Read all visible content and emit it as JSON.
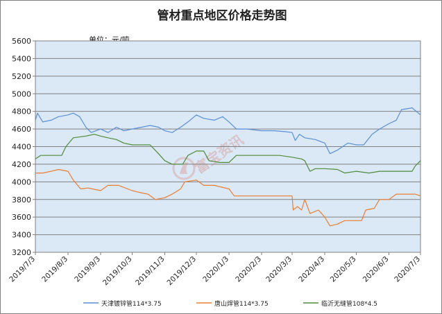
{
  "chart_data": {
    "type": "line",
    "title": "管材重点地区价格走势图",
    "unit_label": "单位：元/吨",
    "watermark": "富宝资讯",
    "ylim": [
      3200,
      5600
    ],
    "y_ticks": [
      3200,
      3400,
      3600,
      3800,
      4000,
      4200,
      4400,
      4600,
      4800,
      5000,
      5200,
      5400,
      5600
    ],
    "x_ticks": [
      "2019/7/3",
      "2019/8/3",
      "2019/9/3",
      "2019/10/3",
      "2019/11/3",
      "2019/12/3",
      "2020/1/3",
      "2020/2/3",
      "2020/3/3",
      "2020/4/3",
      "2020/5/3",
      "2020/6/3",
      "2020/7/3"
    ],
    "grid": true,
    "legend_position": "bottom",
    "series": [
      {
        "name": "天津镀锌管114*3.75",
        "color": "#5b8fd6",
        "points": [
          [
            "2019/7/3",
            4700
          ],
          [
            "2019/7/5",
            4780
          ],
          [
            "2019/7/10",
            4680
          ],
          [
            "2019/7/18",
            4700
          ],
          [
            "2019/7/25",
            4740
          ],
          [
            "2019/8/3",
            4760
          ],
          [
            "2019/8/8",
            4780
          ],
          [
            "2019/8/14",
            4740
          ],
          [
            "2019/8/20",
            4620
          ],
          [
            "2019/8/25",
            4560
          ],
          [
            "2019/9/3",
            4600
          ],
          [
            "2019/9/10",
            4560
          ],
          [
            "2019/9/18",
            4620
          ],
          [
            "2019/9/25",
            4580
          ],
          [
            "2019/10/3",
            4600
          ],
          [
            "2019/10/12",
            4620
          ],
          [
            "2019/10/20",
            4640
          ],
          [
            "2019/10/28",
            4620
          ],
          [
            "2019/11/3",
            4580
          ],
          [
            "2019/11/10",
            4560
          ],
          [
            "2019/11/18",
            4620
          ],
          [
            "2019/11/25",
            4680
          ],
          [
            "2019/12/3",
            4760
          ],
          [
            "2019/12/10",
            4720
          ],
          [
            "2019/12/20",
            4700
          ],
          [
            "2019/12/28",
            4740
          ],
          [
            "2020/1/3",
            4680
          ],
          [
            "2020/1/10",
            4600
          ],
          [
            "2020/1/20",
            4600
          ],
          [
            "2020/2/3",
            4580
          ],
          [
            "2020/2/15",
            4580
          ],
          [
            "2020/2/25",
            4570
          ],
          [
            "2020/3/3",
            4560
          ],
          [
            "2020/3/6",
            4470
          ],
          [
            "2020/3/10",
            4540
          ],
          [
            "2020/3/15",
            4500
          ],
          [
            "2020/3/25",
            4480
          ],
          [
            "2020/4/3",
            4440
          ],
          [
            "2020/4/8",
            4320
          ],
          [
            "2020/4/15",
            4360
          ],
          [
            "2020/4/25",
            4440
          ],
          [
            "2020/5/3",
            4420
          ],
          [
            "2020/5/10",
            4420
          ],
          [
            "2020/5/18",
            4540
          ],
          [
            "2020/5/25",
            4600
          ],
          [
            "2020/6/3",
            4660
          ],
          [
            "2020/6/10",
            4700
          ],
          [
            "2020/6/15",
            4820
          ],
          [
            "2020/6/25",
            4840
          ],
          [
            "2020/7/3",
            4760
          ]
        ]
      },
      {
        "name": "唐山焊管114*3.75",
        "color": "#ed7d31",
        "points": [
          [
            "2019/7/3",
            4100
          ],
          [
            "2019/7/10",
            4100
          ],
          [
            "2019/7/18",
            4120
          ],
          [
            "2019/7/25",
            4140
          ],
          [
            "2019/8/3",
            4120
          ],
          [
            "2019/8/8",
            4020
          ],
          [
            "2019/8/15",
            3920
          ],
          [
            "2019/8/22",
            3930
          ],
          [
            "2019/9/3",
            3900
          ],
          [
            "2019/9/10",
            3960
          ],
          [
            "2019/9/20",
            3960
          ],
          [
            "2019/10/3",
            3900
          ],
          [
            "2019/10/10",
            3880
          ],
          [
            "2019/10/18",
            3860
          ],
          [
            "2019/10/25",
            3800
          ],
          [
            "2019/11/3",
            3820
          ],
          [
            "2019/11/10",
            3860
          ],
          [
            "2019/11/18",
            3920
          ],
          [
            "2019/11/22",
            4000
          ],
          [
            "2019/12/3",
            4020
          ],
          [
            "2019/12/10",
            3960
          ],
          [
            "2019/12/20",
            3960
          ],
          [
            "2020/1/3",
            3920
          ],
          [
            "2020/1/8",
            3840
          ],
          [
            "2020/1/20",
            3840
          ],
          [
            "2020/2/3",
            3840
          ],
          [
            "2020/2/20",
            3840
          ],
          [
            "2020/3/3",
            3840
          ],
          [
            "2020/3/4",
            3680
          ],
          [
            "2020/3/8",
            3720
          ],
          [
            "2020/3/12",
            3680
          ],
          [
            "2020/3/15",
            3800
          ],
          [
            "2020/3/20",
            3640
          ],
          [
            "2020/3/28",
            3680
          ],
          [
            "2020/4/3",
            3600
          ],
          [
            "2020/4/8",
            3500
          ],
          [
            "2020/4/15",
            3520
          ],
          [
            "2020/4/22",
            3560
          ],
          [
            "2020/5/3",
            3560
          ],
          [
            "2020/5/8",
            3560
          ],
          [
            "2020/5/12",
            3680
          ],
          [
            "2020/5/20",
            3700
          ],
          [
            "2020/5/25",
            3800
          ],
          [
            "2020/6/3",
            3800
          ],
          [
            "2020/6/10",
            3860
          ],
          [
            "2020/6/20",
            3860
          ],
          [
            "2020/6/28",
            3860
          ],
          [
            "2020/7/3",
            3840
          ]
        ]
      },
      {
        "name": "临沂无缝管108*4.5",
        "color": "#4e8a3a",
        "points": [
          [
            "2019/7/3",
            4260
          ],
          [
            "2019/7/8",
            4300
          ],
          [
            "2019/7/18",
            4300
          ],
          [
            "2019/7/28",
            4300
          ],
          [
            "2019/8/1",
            4400
          ],
          [
            "2019/8/8",
            4500
          ],
          [
            "2019/8/20",
            4520
          ],
          [
            "2019/8/28",
            4540
          ],
          [
            "2019/9/3",
            4520
          ],
          [
            "2019/9/10",
            4500
          ],
          [
            "2019/9/18",
            4480
          ],
          [
            "2019/9/25",
            4440
          ],
          [
            "2019/10/3",
            4420
          ],
          [
            "2019/10/10",
            4420
          ],
          [
            "2019/10/20",
            4420
          ],
          [
            "2019/10/28",
            4320
          ],
          [
            "2019/11/3",
            4240
          ],
          [
            "2019/11/10",
            4200
          ],
          [
            "2019/11/20",
            4200
          ],
          [
            "2019/11/25",
            4300
          ],
          [
            "2019/12/3",
            4350
          ],
          [
            "2019/12/10",
            4350
          ],
          [
            "2019/12/15",
            4240
          ],
          [
            "2019/12/25",
            4220
          ],
          [
            "2020/1/3",
            4220
          ],
          [
            "2020/1/10",
            4300
          ],
          [
            "2020/1/20",
            4300
          ],
          [
            "2020/2/3",
            4300
          ],
          [
            "2020/2/20",
            4300
          ],
          [
            "2020/3/3",
            4280
          ],
          [
            "2020/3/12",
            4260
          ],
          [
            "2020/3/15",
            4240
          ],
          [
            "2020/3/20",
            4120
          ],
          [
            "2020/3/25",
            4150
          ],
          [
            "2020/4/3",
            4150
          ],
          [
            "2020/4/15",
            4140
          ],
          [
            "2020/4/22",
            4100
          ],
          [
            "2020/5/3",
            4120
          ],
          [
            "2020/5/15",
            4100
          ],
          [
            "2020/5/25",
            4120
          ],
          [
            "2020/6/3",
            4120
          ],
          [
            "2020/6/15",
            4120
          ],
          [
            "2020/6/25",
            4120
          ],
          [
            "2020/6/28",
            4180
          ],
          [
            "2020/7/3",
            4240
          ]
        ]
      }
    ]
  }
}
